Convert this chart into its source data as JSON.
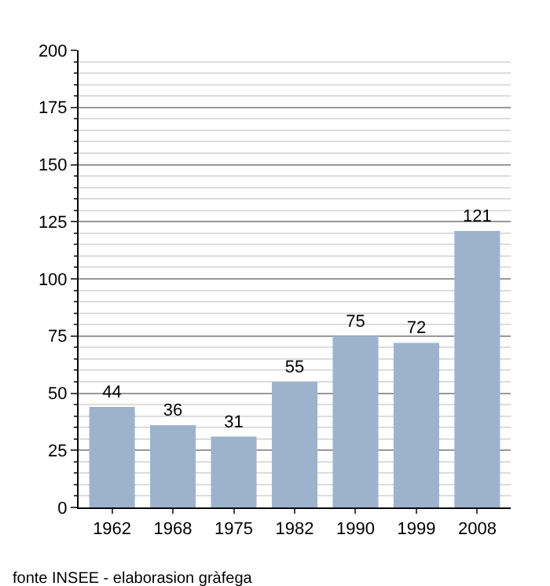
{
  "chart_data": {
    "type": "bar",
    "categories": [
      "1962",
      "1968",
      "1975",
      "1982",
      "1990",
      "1999",
      "2008"
    ],
    "values": [
      44,
      36,
      31,
      55,
      75,
      72,
      121
    ],
    "color": "#9db3cd",
    "ylim": [
      0,
      200
    ],
    "yticks": [
      0,
      25,
      50,
      75,
      100,
      125,
      150,
      175,
      200
    ],
    "grid": "y",
    "data_labels": true,
    "annotations": [
      "fonte INSEE - elaborasion gràfega"
    ]
  }
}
